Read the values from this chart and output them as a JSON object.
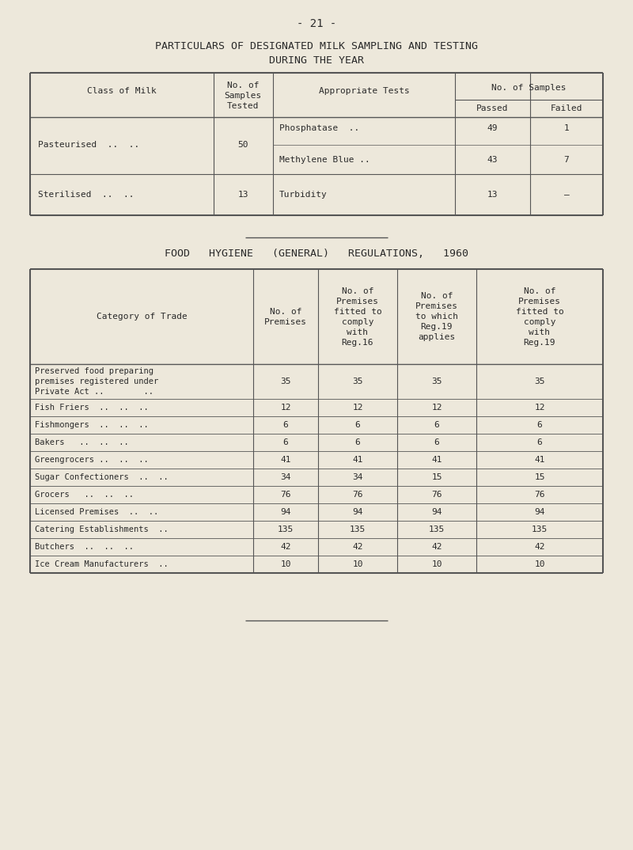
{
  "page_number": "- 21 -",
  "title1": "PARTICULARS OF DESIGNATED MILK SAMPLING AND TESTING",
  "title2": "DURING THE YEAR",
  "bg_color": "#ede8db",
  "text_color": "#2a2a2a",
  "line_color": "#555555",
  "food_title": "FOOD   HYGIENE   (GENERAL)   REGULATIONS,   1960",
  "font_family": "monospace",
  "font_size_title": 9.5,
  "font_size_header": 8.0,
  "font_size_body": 8.0,
  "font_size_pagenum": 10.0
}
